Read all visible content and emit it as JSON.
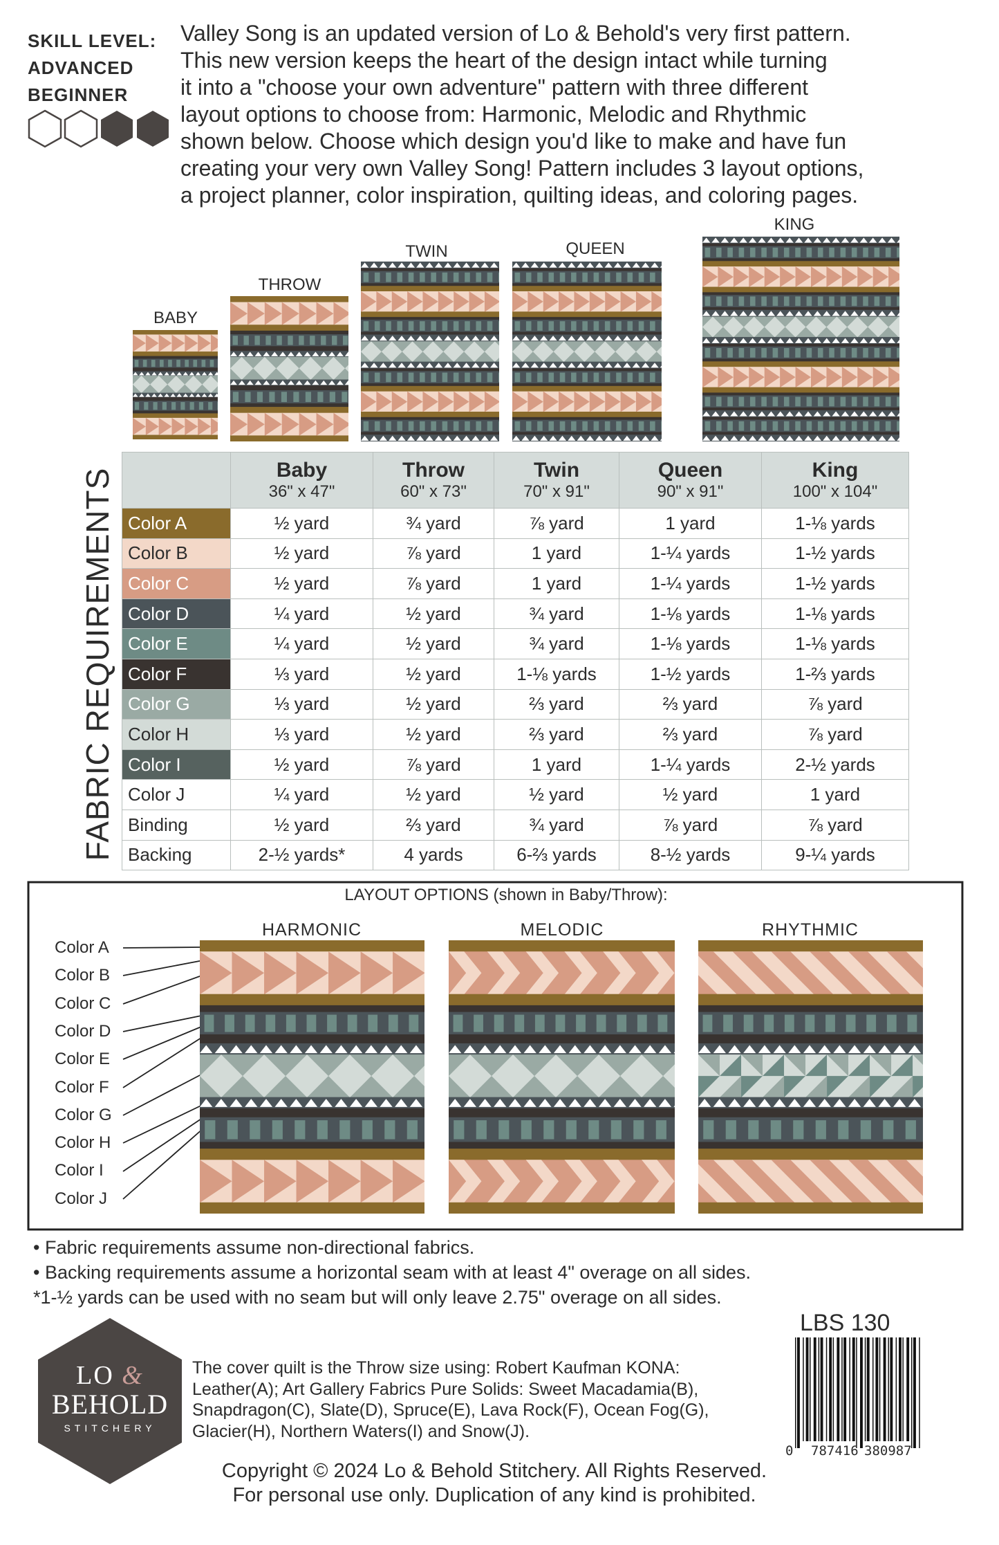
{
  "skill_level": [
    "SKILL LEVEL:",
    "ADVANCED",
    "BEGINNER"
  ],
  "description": [
    "Valley Song is an updated version of Lo & Behold's very first pattern.",
    "This new version keeps the heart of the design intact while turning",
    "it into a \"choose your own adventure\" pattern with three different",
    "layout options to choose from: Harmonic, Melodic and Rhythmic",
    "shown below. Choose which design you'd like to make and have fun",
    "creating your very own Valley Song! Pattern includes 3 layout options,",
    "a project planner, color inspiration, quilting ideas, and coloring pages."
  ],
  "quilt_sizes": [
    "BABY",
    "THROW",
    "TWIN",
    "QUEEN",
    "KING"
  ],
  "table": {
    "title": "FABRIC REQUIREMENTS",
    "columns": [
      {
        "name": "Baby",
        "size": "36\" x 47\""
      },
      {
        "name": "Throw",
        "size": "60\" x 73\""
      },
      {
        "name": "Twin",
        "size": "70\" x 91\""
      },
      {
        "name": "Queen",
        "size": "90\" x 91\""
      },
      {
        "name": "King",
        "size": "100\" x 104\""
      }
    ],
    "rows": [
      [
        "Color A",
        "½ yard",
        "¾ yard",
        "⅞ yard",
        "1 yard",
        "1-⅛ yards"
      ],
      [
        "Color B",
        "½ yard",
        "⅞ yard",
        "1 yard",
        "1-¼ yards",
        "1-½ yards"
      ],
      [
        "Color C",
        "½ yard",
        "⅞ yard",
        "1 yard",
        "1-¼ yards",
        "1-½ yards"
      ],
      [
        "Color D",
        "¼ yard",
        "½ yard",
        "¾ yard",
        "1-⅛ yards",
        "1-⅛ yards"
      ],
      [
        "Color E",
        "¼ yard",
        "½ yard",
        "¾ yard",
        "1-⅛ yards",
        "1-⅛ yards"
      ],
      [
        "Color F",
        "⅓ yard",
        "½ yard",
        "1-⅛ yards",
        "1-½ yards",
        "1-⅔ yards"
      ],
      [
        "Color G",
        "⅓ yard",
        "½ yard",
        "⅔ yard",
        "⅔ yard",
        "⅞ yard"
      ],
      [
        "Color H",
        "⅓ yard",
        "½ yard",
        "⅔ yard",
        "⅔ yard",
        "⅞ yard"
      ],
      [
        "Color I",
        "½ yard",
        "⅞ yard",
        "1 yard",
        "1-¼ yards",
        "2-½ yards"
      ],
      [
        "Color J",
        "¼ yard",
        "½ yard",
        "½ yard",
        "½ yard",
        "1 yard"
      ],
      [
        "Binding",
        "½ yard",
        "⅔ yard",
        "¾ yard",
        "⅞ yard",
        "⅞ yard"
      ],
      [
        "Backing",
        "2-½ yards*",
        "4 yards",
        "6-⅔ yards",
        "8-½ yards",
        "9-¼ yards"
      ]
    ]
  },
  "layout_options": {
    "title": "LAYOUT OPTIONS (shown in Baby/Throw):",
    "layouts": [
      "HARMONIC",
      "MELODIC",
      "RHYTHMIC"
    ],
    "color_labels": [
      "Color A",
      "Color B",
      "Color C",
      "Color D",
      "Color E",
      "Color F",
      "Color G",
      "Color H",
      "Color I",
      "Color J"
    ]
  },
  "notes": [
    "• Fabric requirements assume non-directional fabrics.",
    "• Backing requirements assume a horizontal seam with at least 4\" overage on all sides.",
    "*1-½ yards can be used with no seam but will only leave 2.75\" overage on all sides."
  ],
  "sku": "LBS 130",
  "logo": {
    "lo": "LO",
    "amp": "&",
    "behold": "BEHOLD",
    "stitchery": "STITCHERY"
  },
  "credits": [
    "The cover quilt is the Throw size using: Robert Kaufman KONA:",
    "Leather(A); Art Gallery Fabrics Pure Solids: Sweet Macadamia(B),",
    "Snapdragon(C), Slate(D), Spruce(E), Lava Rock(F), Ocean Fog(G),",
    "Glacier(H), Northern Waters(I) and Snow(J)."
  ],
  "barcode": [
    "0",
    "787416",
    "380987"
  ],
  "copyright": [
    "Copyright © 2024 Lo & Behold Stitchery. All Rights Reserved.",
    "For personal use only. Duplication of any kind is prohibited."
  ]
}
